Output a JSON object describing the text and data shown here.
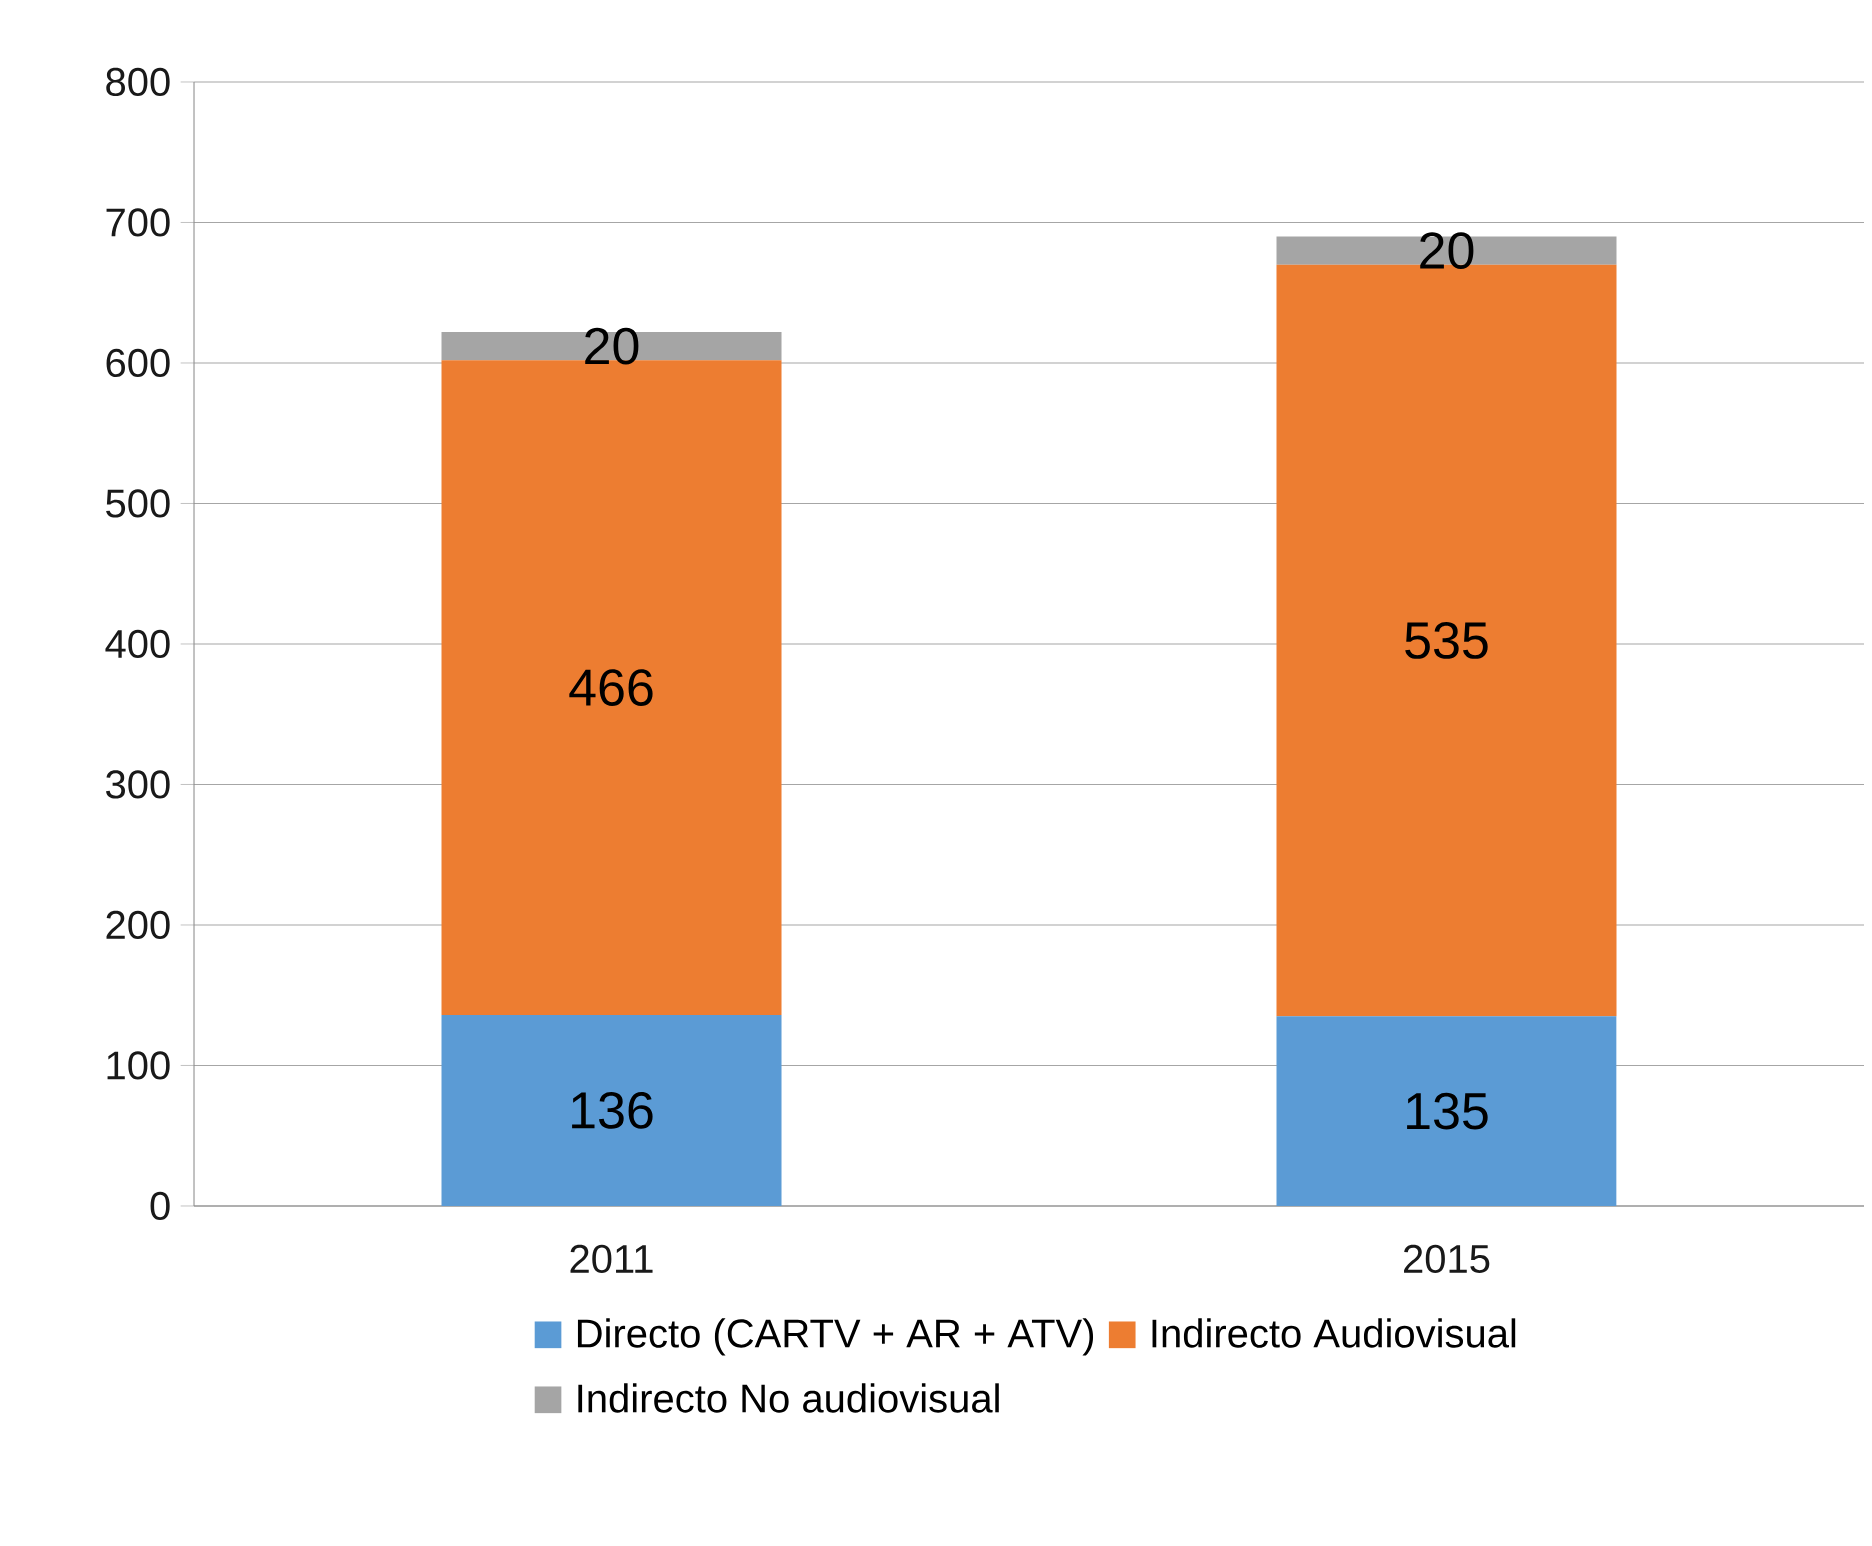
{
  "chart_data": {
    "type": "bar",
    "stacked": true,
    "categories": [
      "2011",
      "2015"
    ],
    "series": [
      {
        "name": "Directo (CARTV + AR + ATV)",
        "color": "#5b9bd5",
        "values": [
          136,
          135
        ]
      },
      {
        "name": "Indirecto Audiovisual",
        "color": "#ed7d31",
        "values": [
          466,
          535
        ]
      },
      {
        "name": "Indirecto No audiovisual",
        "color": "#a5a5a5",
        "values": [
          20,
          20
        ]
      }
    ],
    "ylim": [
      0,
      800
    ],
    "yticks": [
      0,
      100,
      200,
      300,
      400,
      500,
      600,
      700,
      800
    ],
    "grid": "y",
    "legend": "bottom",
    "data_labels": true
  }
}
